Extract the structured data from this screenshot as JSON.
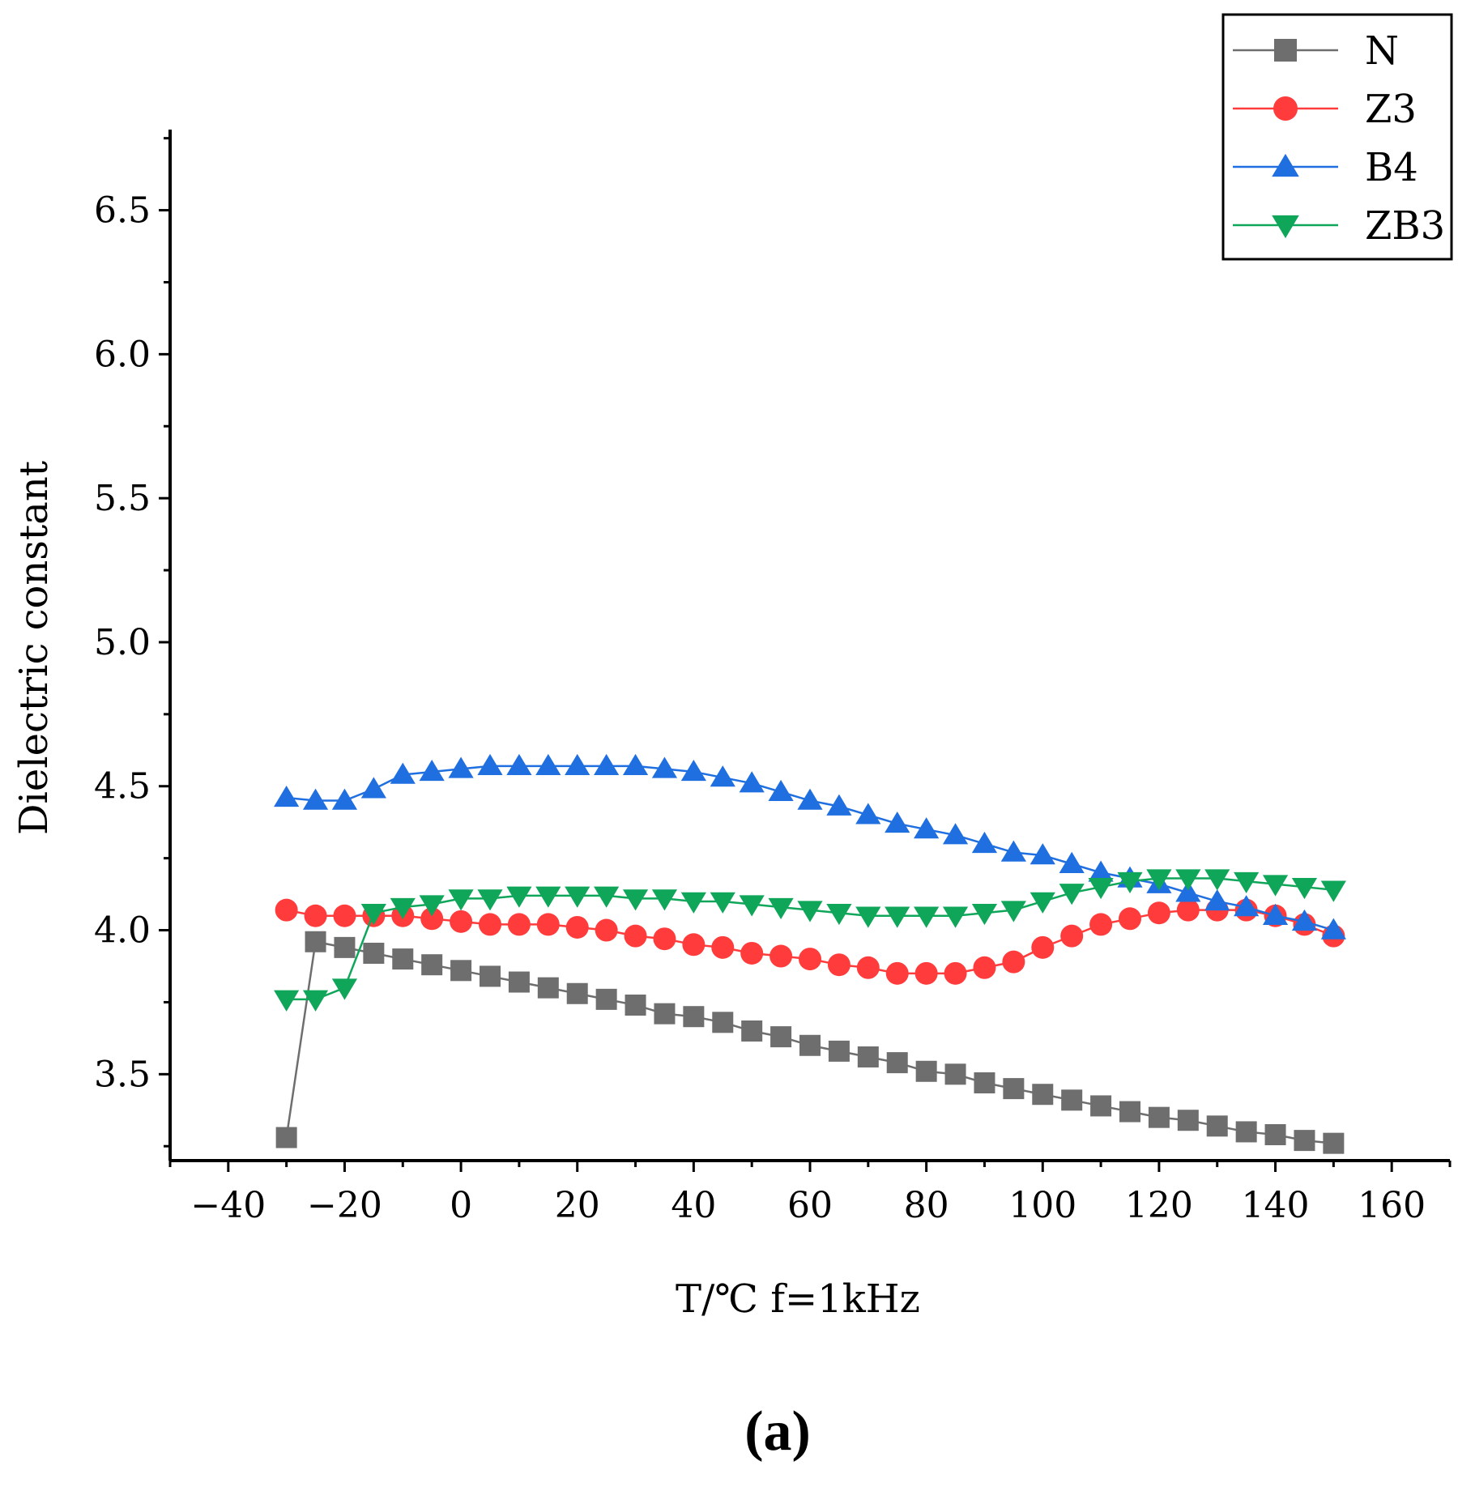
{
  "chart_data": {
    "type": "line",
    "xlabel": "T/℃  f=1kHz",
    "ylabel": "Dielectric constant",
    "caption": "(a)",
    "xlim": [
      -50,
      170
    ],
    "ylim": [
      3.2,
      6.78
    ],
    "xticks": [
      -40,
      -20,
      0,
      20,
      40,
      60,
      80,
      100,
      120,
      140,
      160
    ],
    "yticks": [
      3.5,
      4.0,
      4.5,
      5.0,
      5.5,
      6.0,
      6.5
    ],
    "ytick_labels": [
      "3.5",
      "4.0",
      "4.5",
      "5.0",
      "5.5",
      "6.0",
      "6.5"
    ],
    "legend_position": "top-right",
    "x": [
      -30,
      -25,
      -20,
      -15,
      -10,
      -5,
      0,
      5,
      10,
      15,
      20,
      25,
      30,
      35,
      40,
      45,
      50,
      55,
      60,
      65,
      70,
      75,
      80,
      85,
      90,
      95,
      100,
      105,
      110,
      115,
      120,
      125,
      130,
      135,
      140,
      145,
      150
    ],
    "series": [
      {
        "name": "N",
        "color": "#6e6e6e",
        "marker": "square",
        "values": [
          3.28,
          3.96,
          3.94,
          3.92,
          3.9,
          3.88,
          3.86,
          3.84,
          3.82,
          3.8,
          3.78,
          3.76,
          3.74,
          3.71,
          3.7,
          3.68,
          3.65,
          3.63,
          3.6,
          3.58,
          3.56,
          3.54,
          3.51,
          3.5,
          3.47,
          3.45,
          3.43,
          3.41,
          3.39,
          3.37,
          3.35,
          3.34,
          3.32,
          3.3,
          3.29,
          3.27,
          3.26
        ]
      },
      {
        "name": "Z3",
        "color": "#ff3b3b",
        "marker": "circle",
        "values": [
          4.07,
          4.05,
          4.05,
          4.05,
          4.05,
          4.04,
          4.03,
          4.02,
          4.02,
          4.02,
          4.01,
          4.0,
          3.98,
          3.97,
          3.95,
          3.94,
          3.92,
          3.91,
          3.9,
          3.88,
          3.87,
          3.85,
          3.85,
          3.85,
          3.87,
          3.89,
          3.94,
          3.98,
          4.02,
          4.04,
          4.06,
          4.07,
          4.07,
          4.07,
          4.05,
          4.02,
          3.98
        ]
      },
      {
        "name": "B4",
        "color": "#1f6fe0",
        "marker": "triangle-up",
        "values": [
          4.46,
          4.45,
          4.45,
          4.49,
          4.54,
          4.55,
          4.56,
          4.57,
          4.57,
          4.57,
          4.57,
          4.57,
          4.57,
          4.56,
          4.55,
          4.53,
          4.51,
          4.48,
          4.45,
          4.43,
          4.4,
          4.37,
          4.35,
          4.33,
          4.3,
          4.27,
          4.26,
          4.23,
          4.2,
          4.18,
          4.16,
          4.13,
          4.1,
          4.08,
          4.05,
          4.03,
          4.0
        ]
      },
      {
        "name": "ZB3",
        "color": "#0fa65a",
        "marker": "triangle-down",
        "values": [
          3.76,
          3.76,
          3.8,
          4.06,
          4.08,
          4.09,
          4.11,
          4.11,
          4.12,
          4.12,
          4.12,
          4.12,
          4.11,
          4.11,
          4.1,
          4.1,
          4.09,
          4.08,
          4.07,
          4.06,
          4.05,
          4.05,
          4.05,
          4.05,
          4.06,
          4.07,
          4.1,
          4.13,
          4.15,
          4.17,
          4.18,
          4.18,
          4.18,
          4.17,
          4.16,
          4.15,
          4.14
        ]
      }
    ]
  }
}
